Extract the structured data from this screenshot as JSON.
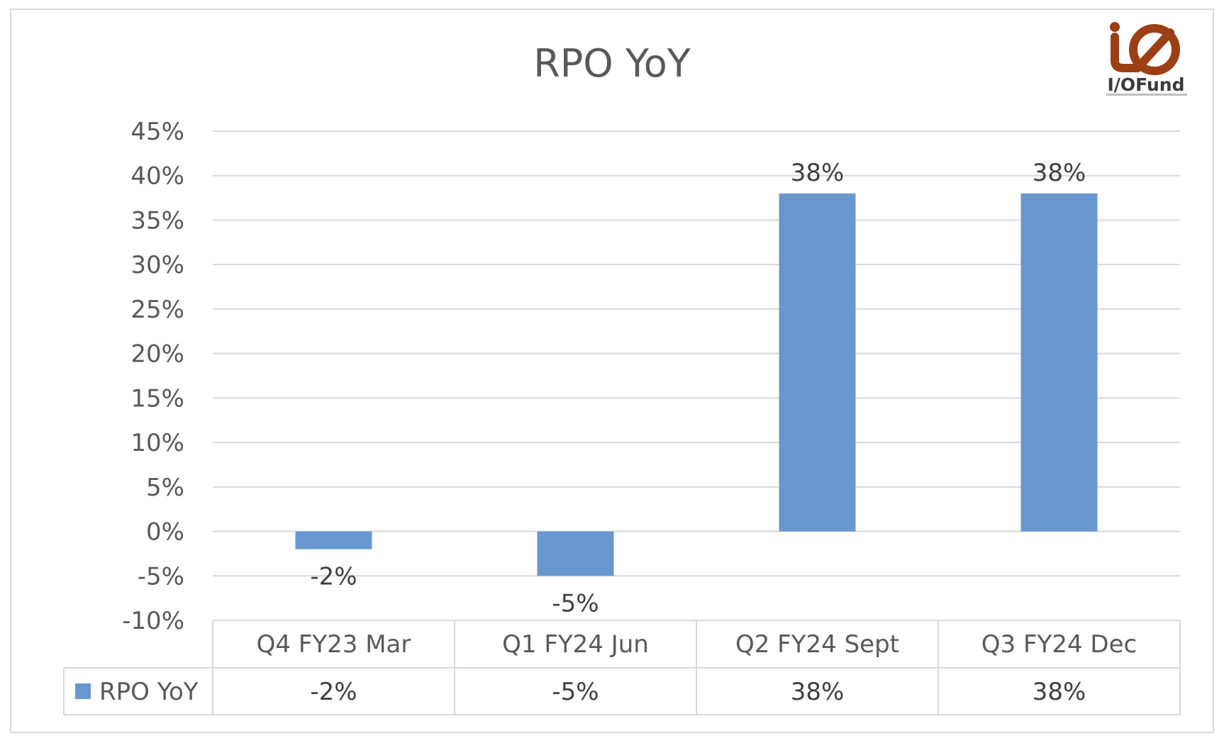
{
  "colors": {
    "bar": "#6897d0",
    "grid": "#d9d9d9",
    "logo": "#9c3f15",
    "text": "#595959"
  },
  "logo": {
    "text": "I/OFund",
    "icon": "io-logo-icon"
  },
  "chart_data": {
    "type": "bar",
    "title": "RPO YoY",
    "categories": [
      "Q4 FY23 Mar",
      "Q1 FY24 Jun",
      "Q2 FY24 Sept",
      "Q3 FY24 Dec"
    ],
    "series": [
      {
        "name": "RPO YoY",
        "values": [
          -2,
          -5,
          38,
          38
        ],
        "labels": [
          "-2%",
          "-5%",
          "38%",
          "38%"
        ]
      }
    ],
    "ylim": [
      -10,
      45
    ],
    "yticks": [
      45,
      40,
      35,
      30,
      25,
      20,
      15,
      10,
      5,
      0,
      -5,
      -10
    ],
    "ytick_labels": [
      "45%",
      "40%",
      "35%",
      "30%",
      "25%",
      "20%",
      "15%",
      "10%",
      "5%",
      "0%",
      "-5%",
      "-10%"
    ],
    "grid": true,
    "legend": "data-table-left",
    "data_table": {
      "row_label": "RPO YoY",
      "cells": [
        "-2%",
        "-5%",
        "38%",
        "38%"
      ]
    }
  }
}
